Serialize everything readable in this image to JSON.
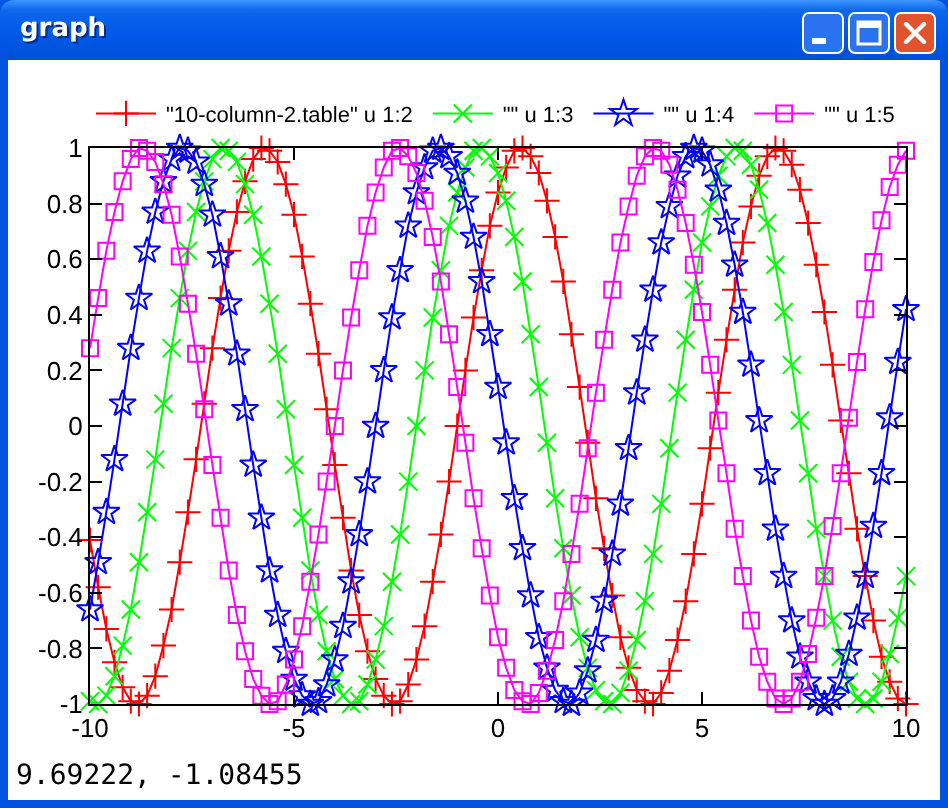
{
  "chart_data": {
    "type": "line",
    "title": "graph",
    "x": [
      -10,
      -9.8,
      -9.6,
      -9.4,
      -9.2,
      -9,
      -8.8,
      -8.6,
      -8.4,
      -8.2,
      -8,
      -7.8,
      -7.6,
      -7.4,
      -7.2,
      -7,
      -6.8,
      -6.6,
      -6.4,
      -6.2,
      -6,
      -5.8,
      -5.6,
      -5.4,
      -5.2,
      -5,
      -4.8,
      -4.6,
      -4.4,
      -4.2,
      -4,
      -3.8,
      -3.6,
      -3.4,
      -3.2,
      -3,
      -2.8,
      -2.6,
      -2.4,
      -2.2,
      -2,
      -1.8,
      -1.6,
      -1.4,
      -1.2,
      -1,
      -0.8,
      -0.6,
      -0.4,
      -0.2,
      0,
      0.2,
      0.4,
      0.6,
      0.8,
      1,
      1.2,
      1.4,
      1.6,
      1.8,
      2,
      2.2,
      2.4,
      2.6,
      2.8,
      3,
      3.2,
      3.4,
      3.6,
      3.8,
      4,
      4.2,
      4.4,
      4.6,
      4.8,
      5,
      5.2,
      5.4,
      5.6,
      5.8,
      6,
      6.2,
      6.4,
      6.6,
      6.8,
      7,
      7.2,
      7.4,
      7.6,
      7.8,
      8,
      8.2,
      8.4,
      8.6,
      8.8,
      9,
      9.2,
      9.4,
      9.6,
      9.8,
      10
    ],
    "series": [
      {
        "name": "\"10-column-2.table\" u 1:2",
        "color": "#ff0000",
        "marker": "cross",
        "values": [
          -0.41,
          -0.58,
          -0.73,
          -0.85,
          -0.94,
          -0.99,
          -1,
          -0.97,
          -0.9,
          -0.79,
          -0.66,
          -0.49,
          -0.31,
          -0.12,
          0.08,
          0.28,
          0.46,
          0.63,
          0.77,
          0.88,
          0.96,
          1,
          0.99,
          0.95,
          0.87,
          0.76,
          0.61,
          0.44,
          0.26,
          0.06,
          -0.14,
          -0.33,
          -0.52,
          -0.68,
          -0.81,
          -0.91,
          -0.97,
          -1,
          -0.99,
          -0.93,
          -0.84,
          -0.72,
          -0.56,
          -0.39,
          -0.2,
          0,
          0.2,
          0.39,
          0.56,
          0.72,
          0.84,
          0.93,
          0.99,
          1,
          0.97,
          0.91,
          0.81,
          0.68,
          0.52,
          0.33,
          0.14,
          -0.06,
          -0.26,
          -0.44,
          -0.61,
          -0.76,
          -0.87,
          -0.95,
          -0.99,
          -1,
          -0.96,
          -0.88,
          -0.77,
          -0.63,
          -0.46,
          -0.28,
          -0.08,
          0.12,
          0.31,
          0.49,
          0.66,
          0.79,
          0.9,
          0.97,
          1,
          0.99,
          0.94,
          0.85,
          0.73,
          0.58,
          0.41,
          0.22,
          0.02,
          -0.17,
          -0.37,
          -0.54,
          -0.7,
          -0.83,
          -0.92,
          -0.98,
          -1
        ]
      },
      {
        "name": "\"\" u 1:3",
        "color": "#00ff00",
        "marker": "x",
        "values": [
          -0.99,
          -1,
          -0.97,
          -0.9,
          -0.79,
          -0.66,
          -0.49,
          -0.31,
          -0.12,
          0.08,
          0.28,
          0.46,
          0.63,
          0.77,
          0.88,
          0.96,
          1,
          0.99,
          0.95,
          0.87,
          0.76,
          0.61,
          0.44,
          0.26,
          0.06,
          -0.14,
          -0.33,
          -0.52,
          -0.68,
          -0.81,
          -0.91,
          -0.97,
          -1,
          -0.99,
          -0.93,
          -0.84,
          -0.72,
          -0.56,
          -0.39,
          -0.2,
          0,
          0.2,
          0.39,
          0.56,
          0.72,
          0.84,
          0.93,
          0.99,
          1,
          0.97,
          0.91,
          0.81,
          0.68,
          0.52,
          0.33,
          0.14,
          -0.06,
          -0.26,
          -0.44,
          -0.61,
          -0.76,
          -0.87,
          -0.95,
          -0.99,
          -1,
          -0.96,
          -0.88,
          -0.77,
          -0.63,
          -0.46,
          -0.28,
          -0.08,
          0.12,
          0.31,
          0.49,
          0.66,
          0.79,
          0.9,
          0.97,
          1,
          0.99,
          0.94,
          0.85,
          0.73,
          0.58,
          0.41,
          0.22,
          0.02,
          -0.17,
          -0.37,
          -0.54,
          -0.7,
          -0.83,
          -0.92,
          -0.98,
          -1,
          -0.98,
          -0.92,
          -0.82,
          -0.69,
          -0.54
        ]
      },
      {
        "name": "\"\" u 1:4",
        "color": "#0000ff",
        "marker": "star",
        "values": [
          -0.66,
          -0.49,
          -0.31,
          -0.12,
          0.08,
          0.28,
          0.46,
          0.63,
          0.77,
          0.88,
          0.96,
          1,
          0.99,
          0.95,
          0.87,
          0.76,
          0.61,
          0.44,
          0.26,
          0.06,
          -0.14,
          -0.33,
          -0.52,
          -0.68,
          -0.81,
          -0.91,
          -0.97,
          -1,
          -0.99,
          -0.93,
          -0.84,
          -0.72,
          -0.56,
          -0.39,
          -0.2,
          0,
          0.2,
          0.39,
          0.56,
          0.72,
          0.84,
          0.93,
          0.99,
          1,
          0.97,
          0.91,
          0.81,
          0.68,
          0.52,
          0.33,
          0.14,
          -0.06,
          -0.26,
          -0.44,
          -0.61,
          -0.76,
          -0.87,
          -0.95,
          -0.99,
          -1,
          -0.96,
          -0.88,
          -0.77,
          -0.63,
          -0.46,
          -0.28,
          -0.08,
          0.12,
          0.31,
          0.49,
          0.66,
          0.79,
          0.9,
          0.97,
          1,
          0.99,
          0.94,
          0.85,
          0.73,
          0.58,
          0.41,
          0.22,
          0.02,
          -0.17,
          -0.37,
          -0.54,
          -0.7,
          -0.83,
          -0.92,
          -0.98,
          -1,
          -0.98,
          -0.92,
          -0.82,
          -0.69,
          -0.54,
          -0.36,
          -0.17,
          0.03,
          0.23,
          0.42
        ]
      },
      {
        "name": "\"\" u 1:5",
        "color": "#ff00ff",
        "marker": "square",
        "values": [
          0.28,
          0.46,
          0.63,
          0.77,
          0.88,
          0.96,
          1,
          0.99,
          0.95,
          0.87,
          0.76,
          0.61,
          0.44,
          0.26,
          0.06,
          -0.14,
          -0.33,
          -0.52,
          -0.68,
          -0.81,
          -0.91,
          -0.97,
          -1,
          -0.99,
          -0.93,
          -0.84,
          -0.72,
          -0.56,
          -0.39,
          -0.2,
          0,
          0.2,
          0.39,
          0.56,
          0.72,
          0.84,
          0.93,
          0.99,
          1,
          0.97,
          0.91,
          0.81,
          0.68,
          0.52,
          0.33,
          0.14,
          -0.06,
          -0.26,
          -0.44,
          -0.61,
          -0.76,
          -0.87,
          -0.95,
          -0.99,
          -1,
          -0.96,
          -0.88,
          -0.77,
          -0.63,
          -0.46,
          -0.28,
          -0.08,
          0.12,
          0.31,
          0.49,
          0.66,
          0.79,
          0.9,
          0.97,
          1,
          0.99,
          0.94,
          0.85,
          0.73,
          0.58,
          0.41,
          0.22,
          0.02,
          -0.17,
          -0.37,
          -0.54,
          -0.7,
          -0.83,
          -0.92,
          -0.98,
          -1,
          -0.98,
          -0.92,
          -0.82,
          -0.69,
          -0.54,
          -0.36,
          -0.17,
          0.03,
          0.23,
          0.42,
          0.59,
          0.74,
          0.86,
          0.94,
          0.99
        ]
      }
    ],
    "xlim": [
      -10,
      10
    ],
    "xticks": [
      -10,
      -5,
      0,
      5,
      10
    ],
    "ylim": [
      -1,
      1
    ],
    "yticks": [
      -1,
      -0.8,
      -0.6,
      -0.4,
      -0.2,
      0,
      0.2,
      0.4,
      0.6,
      0.8,
      1
    ],
    "legend": "top",
    "line_style": "solid",
    "annotations": [
      "9.69222, -1.08455"
    ]
  }
}
